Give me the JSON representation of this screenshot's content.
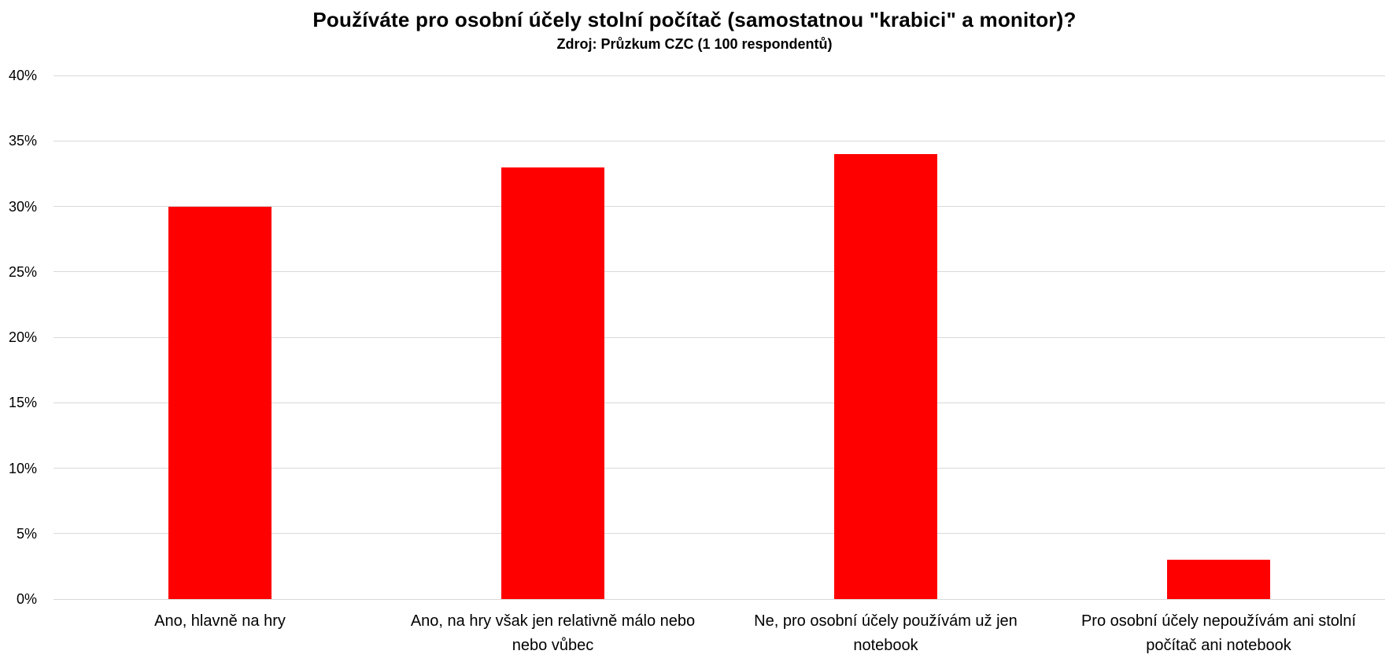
{
  "chart_data": {
    "type": "bar",
    "title": "Používáte pro osobní účely stolní počítač (samostatnou \"krabici\" a monitor)?",
    "subtitle": "Zdroj: Průzkum CZC (1 100 respondentů)",
    "categories": [
      "Ano, hlavně na hry",
      "Ano, na hry však jen relativně málo nebo\nnebo vůbec",
      "Ne, pro osobní účely používám už jen\nnotebook",
      "Pro osobní účely nepoužívám ani stolní\npočítač ani notebook"
    ],
    "values": [
      30,
      33,
      34,
      3
    ],
    "value_unit": "%",
    "xlabel": "",
    "ylabel": "",
    "ylim": [
      0,
      40
    ],
    "ytick_step": 5,
    "ytick_labels": [
      "0%",
      "5%",
      "10%",
      "15%",
      "20%",
      "25%",
      "30%",
      "35%",
      "40%"
    ],
    "grid": "horizontal",
    "legend_position": "none",
    "colors": {
      "bar": "#FF0000",
      "gridline": "#D9D9D9",
      "text": "#000000",
      "background": "#FFFFFF"
    }
  }
}
